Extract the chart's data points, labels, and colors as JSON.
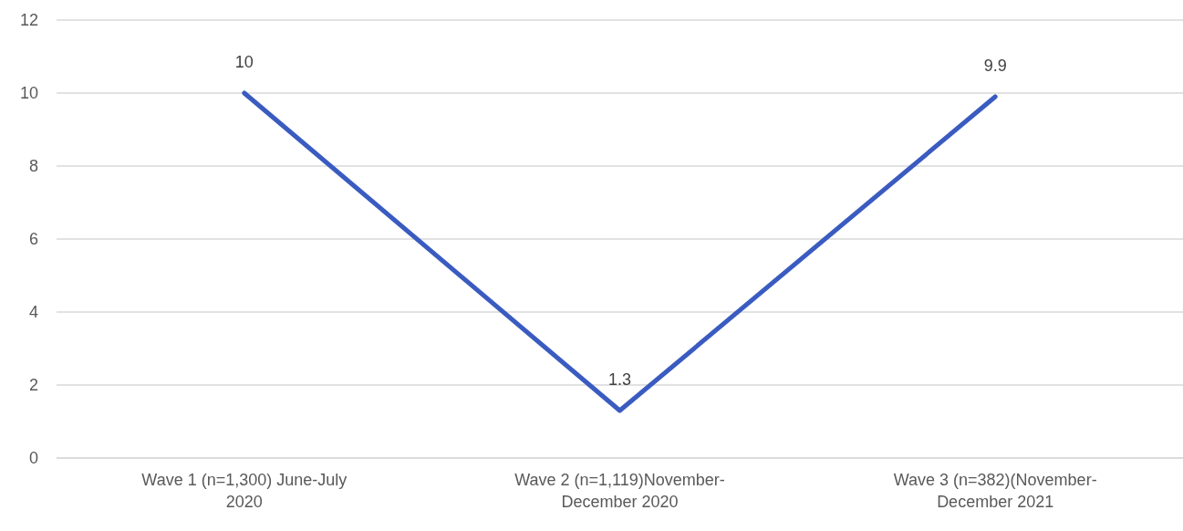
{
  "chart_data": {
    "type": "line",
    "categories": [
      "Wave 1 (n=1,300) June-July 2020",
      "Wave 2 (n=1,119)November-December 2020",
      "Wave 3 (n=382)(November-December 2021"
    ],
    "series": [
      {
        "color": "#3a5bc0",
        "values": [
          10,
          1.3,
          9.9
        ]
      }
    ],
    "ylim": [
      0,
      12
    ],
    "yticks": [
      0,
      2,
      4,
      6,
      8,
      10,
      12
    ],
    "grid": "y",
    "data_labels": true,
    "marker": "none",
    "line_style": "solid"
  }
}
